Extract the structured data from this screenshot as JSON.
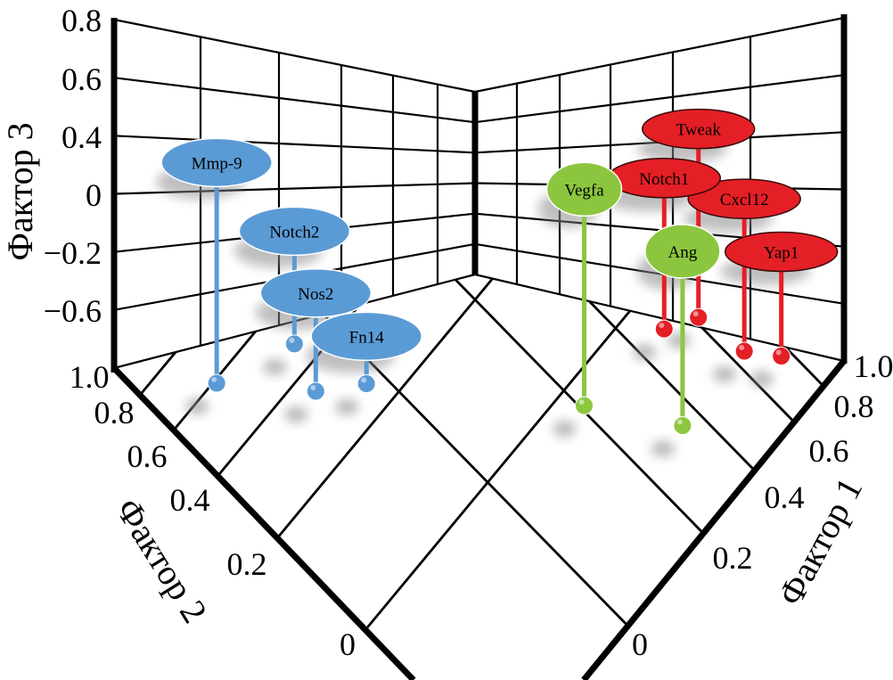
{
  "chart_data": {
    "type": "scatter3d",
    "title": "",
    "axes": {
      "x": {
        "label": "Фактор 1",
        "ticks": [
          "0",
          "0.2",
          "0.4",
          "0.6",
          "0.8",
          "1.0"
        ],
        "tick_values": [
          0,
          0.2,
          0.4,
          0.6,
          0.8,
          1.0
        ]
      },
      "y": {
        "label": "Фактор 2",
        "ticks": [
          "0",
          "0.2",
          "0.4",
          "0.6",
          "0.8",
          "1.0"
        ],
        "tick_values": [
          0,
          0.2,
          0.4,
          0.6,
          0.8,
          1.0
        ]
      },
      "z": {
        "label": "Фактор 3",
        "ticks": [
          "−0.6",
          "−0.2",
          "0",
          "0.4",
          "0.6",
          "0.8"
        ],
        "tick_values": [
          -0.6,
          -0.2,
          0,
          0.4,
          0.6,
          0.8
        ]
      }
    },
    "grid": true,
    "series": [
      {
        "name": "red",
        "color": "#e41f26",
        "points": [
          {
            "label": "Tweak",
            "f1": 0.62,
            "f2": -0.09,
            "f3": 0.47
          },
          {
            "label": "Cxcl12",
            "f1": 0.66,
            "f2": -0.18,
            "f3": -0.03
          },
          {
            "label": "Notch1",
            "f1": 0.51,
            "f2": -0.06,
            "f3": 0.09
          },
          {
            "label": "Yap1",
            "f1": 0.76,
            "f2": -0.23,
            "f3": -0.24
          }
        ]
      },
      {
        "name": "green",
        "color": "#8cc63f",
        "points": [
          {
            "label": "Ang",
            "f1": 0.35,
            "f2": -0.18,
            "f3": -0.14
          },
          {
            "label": "Vegfa",
            "f1": 0.21,
            "f2": -0.04,
            "f3": 0.04
          }
        ]
      },
      {
        "name": "blue",
        "color": "#5b9bd5",
        "points": [
          {
            "label": "Mmp-9",
            "f1": -0.21,
            "f2": 0.59,
            "f3": 0.2
          },
          {
            "label": "Notch2",
            "f1": -0.07,
            "f2": 0.48,
            "f3": -0.16
          },
          {
            "label": "Nos2",
            "f1": -0.1,
            "f2": 0.35,
            "f3": -0.4
          },
          {
            "label": "Fn14",
            "f1": -0.03,
            "f2": 0.27,
            "f3": -0.7
          }
        ]
      }
    ]
  }
}
